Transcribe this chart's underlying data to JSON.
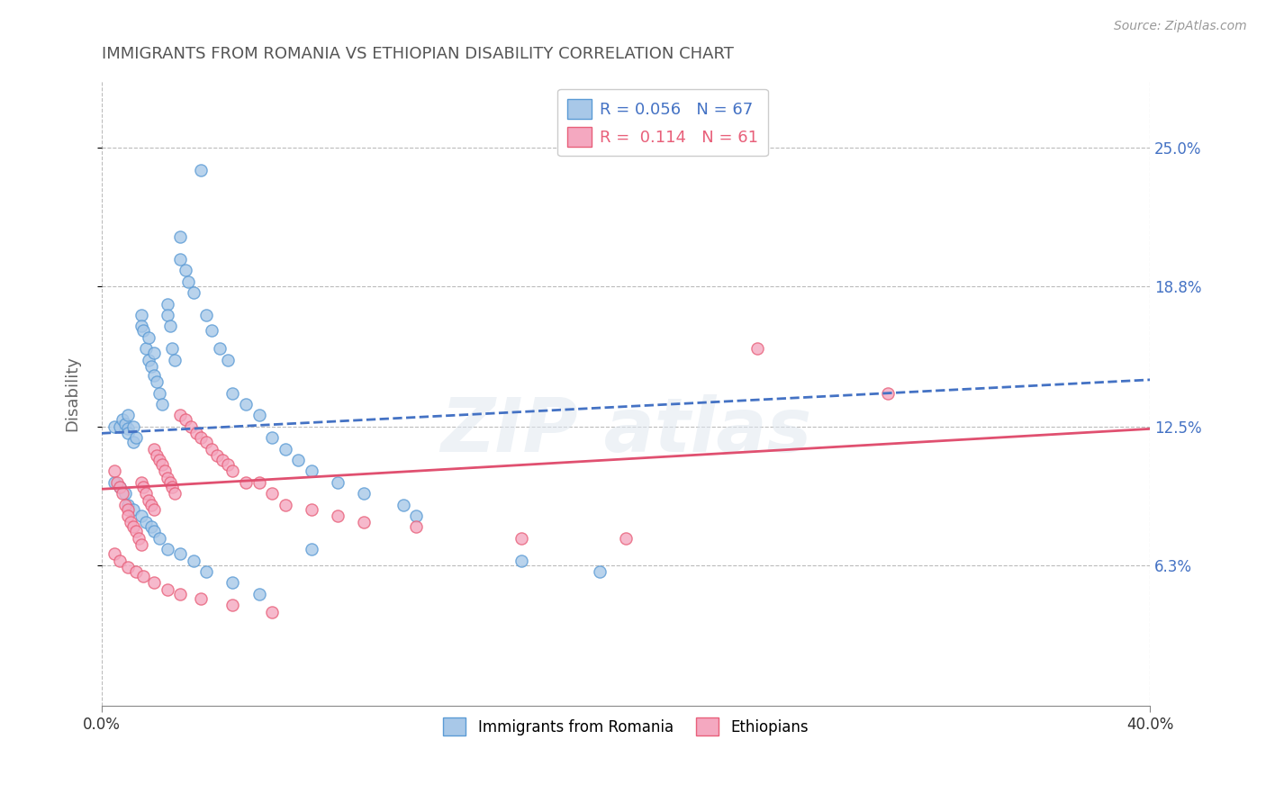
{
  "title": "IMMIGRANTS FROM ROMANIA VS ETHIOPIAN DISABILITY CORRELATION CHART",
  "source": "Source: ZipAtlas.com",
  "ylabel": "Disability",
  "xlim": [
    0.0,
    0.4
  ],
  "ylim": [
    0.0,
    0.28
  ],
  "ytick_values": [
    0.063,
    0.125,
    0.188,
    0.25
  ],
  "ytick_labels": [
    "6.3%",
    "12.5%",
    "18.8%",
    "25.0%"
  ],
  "xtick_values": [
    0.0,
    0.4
  ],
  "xtick_labels": [
    "0.0%",
    "40.0%"
  ],
  "romania_color": "#a8c8e8",
  "ethiopia_color": "#f4a8c0",
  "romania_edge_color": "#5b9bd5",
  "ethiopia_edge_color": "#e8607a",
  "romania_line_color": "#4472c4",
  "ethiopia_line_color": "#e05070",
  "romania_R": 0.056,
  "romania_N": 67,
  "ethiopia_R": 0.114,
  "ethiopia_N": 61,
  "legend_label_1": "Immigrants from Romania",
  "legend_label_2": "Ethiopians",
  "romania_scatter_x": [
    0.005,
    0.007,
    0.008,
    0.009,
    0.01,
    0.01,
    0.01,
    0.012,
    0.012,
    0.013,
    0.015,
    0.015,
    0.016,
    0.017,
    0.018,
    0.018,
    0.019,
    0.02,
    0.02,
    0.021,
    0.022,
    0.023,
    0.025,
    0.025,
    0.026,
    0.027,
    0.028,
    0.03,
    0.03,
    0.032,
    0.033,
    0.035,
    0.038,
    0.04,
    0.042,
    0.045,
    0.048,
    0.05,
    0.055,
    0.06,
    0.065,
    0.07,
    0.075,
    0.08,
    0.09,
    0.1,
    0.115,
    0.12,
    0.16,
    0.19,
    0.005,
    0.007,
    0.009,
    0.01,
    0.012,
    0.015,
    0.017,
    0.019,
    0.02,
    0.022,
    0.025,
    0.03,
    0.035,
    0.04,
    0.05,
    0.06,
    0.08
  ],
  "romania_scatter_y": [
    0.125,
    0.125,
    0.128,
    0.126,
    0.13,
    0.124,
    0.122,
    0.125,
    0.118,
    0.12,
    0.175,
    0.17,
    0.168,
    0.16,
    0.155,
    0.165,
    0.152,
    0.148,
    0.158,
    0.145,
    0.14,
    0.135,
    0.18,
    0.175,
    0.17,
    0.16,
    0.155,
    0.2,
    0.21,
    0.195,
    0.19,
    0.185,
    0.24,
    0.175,
    0.168,
    0.16,
    0.155,
    0.14,
    0.135,
    0.13,
    0.12,
    0.115,
    0.11,
    0.105,
    0.1,
    0.095,
    0.09,
    0.085,
    0.065,
    0.06,
    0.1,
    0.098,
    0.095,
    0.09,
    0.088,
    0.085,
    0.082,
    0.08,
    0.078,
    0.075,
    0.07,
    0.068,
    0.065,
    0.06,
    0.055,
    0.05,
    0.07
  ],
  "ethiopia_scatter_x": [
    0.005,
    0.006,
    0.007,
    0.008,
    0.009,
    0.01,
    0.01,
    0.011,
    0.012,
    0.013,
    0.014,
    0.015,
    0.015,
    0.016,
    0.017,
    0.018,
    0.019,
    0.02,
    0.02,
    0.021,
    0.022,
    0.023,
    0.024,
    0.025,
    0.026,
    0.027,
    0.028,
    0.03,
    0.032,
    0.034,
    0.036,
    0.038,
    0.04,
    0.042,
    0.044,
    0.046,
    0.048,
    0.05,
    0.055,
    0.06,
    0.065,
    0.07,
    0.08,
    0.09,
    0.1,
    0.12,
    0.16,
    0.2,
    0.25,
    0.3,
    0.005,
    0.007,
    0.01,
    0.013,
    0.016,
    0.02,
    0.025,
    0.03,
    0.038,
    0.05,
    0.065
  ],
  "ethiopia_scatter_y": [
    0.105,
    0.1,
    0.098,
    0.095,
    0.09,
    0.088,
    0.085,
    0.082,
    0.08,
    0.078,
    0.075,
    0.072,
    0.1,
    0.098,
    0.095,
    0.092,
    0.09,
    0.088,
    0.115,
    0.112,
    0.11,
    0.108,
    0.105,
    0.102,
    0.1,
    0.098,
    0.095,
    0.13,
    0.128,
    0.125,
    0.122,
    0.12,
    0.118,
    0.115,
    0.112,
    0.11,
    0.108,
    0.105,
    0.1,
    0.1,
    0.095,
    0.09,
    0.088,
    0.085,
    0.082,
    0.08,
    0.075,
    0.075,
    0.16,
    0.14,
    0.068,
    0.065,
    0.062,
    0.06,
    0.058,
    0.055,
    0.052,
    0.05,
    0.048,
    0.045,
    0.042
  ]
}
